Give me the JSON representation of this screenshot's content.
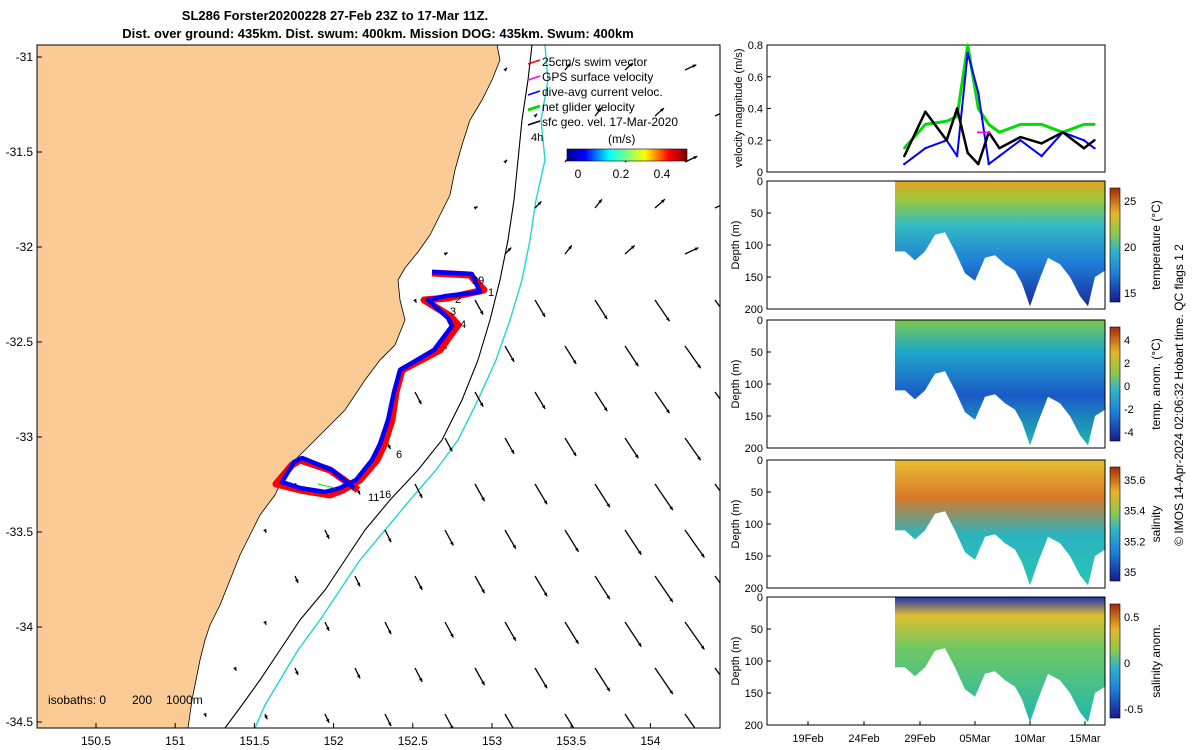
{
  "title": {
    "line1": "SL286 Forster20200228 27-Feb 23Z to 17-Mar 11Z.",
    "line2": "Dist. over ground: 435km. Dist. swum: 400km. Mission DOG: 435km. Swum: 400km"
  },
  "map": {
    "lat_ticks": [
      "-31",
      "-31.5",
      "-32",
      "-32.5",
      "-33",
      "-33.5",
      "-34",
      "-34.5"
    ],
    "lon_ticks": [
      "150.5",
      "151",
      "151.5",
      "152",
      "152.5",
      "153",
      "153.5",
      "154"
    ],
    "isobaths_label": "isobaths: 0",
    "isobath_200": "200",
    "isobath_1000": "1000m",
    "legend": [
      {
        "label": "25cm/s swim vector",
        "color": "#ff0000"
      },
      {
        "label": "GPS surface velocity",
        "color": "#ff00ff"
      },
      {
        "label": "dive-avg current veloc.",
        "color": "#0000ff"
      },
      {
        "label": "net glider velocity",
        "color": "#00dd00"
      },
      {
        "label": "sfc geo. vel. 17-Mar-2020",
        "color": "#000000"
      }
    ],
    "colorbar_label": "(m/s)",
    "colorbar_ticks": [
      "0",
      "0.2",
      "0.4"
    ],
    "track_labels": [
      "29",
      "1",
      "2",
      "3",
      "4",
      "6",
      "11",
      "16",
      "4h"
    ],
    "colors": {
      "land": "#fbcb96",
      "isobath_200": "#000000",
      "isobath_1000": "#22d4d4",
      "track_red": "#ff0000",
      "track_blue": "#0000ff"
    }
  },
  "velocity_panel": {
    "ylabel": "velocity magnitude (m/s)",
    "yticks": [
      "0",
      "0.2",
      "0.4",
      "0.6",
      "0.8"
    ]
  },
  "section_panels": [
    {
      "name": "temperature",
      "cbar_label": "temperature (°C)",
      "cbar_ticks": [
        "25",
        "20",
        "15"
      ]
    },
    {
      "name": "temp-anom",
      "cbar_label": "temp. anom. (°C)",
      "cbar_ticks": [
        "4",
        "2",
        "0",
        "-2",
        "-4"
      ]
    },
    {
      "name": "salinity",
      "cbar_label": "salinity",
      "cbar_ticks": [
        "35.6",
        "35.4",
        "35.2",
        "35"
      ]
    },
    {
      "name": "salinity-anom",
      "cbar_label": "salinity anom.",
      "cbar_ticks": [
        "0.5",
        "0",
        "-0.5"
      ]
    }
  ],
  "depth_label": "Depth (m)",
  "depth_ticks": [
    "0",
    "50",
    "100",
    "150",
    "200"
  ],
  "date_ticks": [
    "19Feb",
    "24Feb",
    "29Feb",
    "05Mar",
    "10Mar",
    "15Mar"
  ],
  "credit": "© IMOS 14-Apr-2024 02:06:32 Hobart time. QC flags 1  2",
  "chart_data": {
    "type": "line",
    "title": "SL286 Forster20200228 27-Feb 23Z to 17-Mar 11Z.",
    "xlabel": "",
    "ylabel": "velocity magnitude (m/s)",
    "ylim": [
      0,
      0.8
    ],
    "x_range": [
      "2020-02-15",
      "2020-03-18"
    ],
    "x": [
      "2020-02-28",
      "2020-03-01",
      "2020-03-03",
      "2020-03-04",
      "2020-03-05",
      "2020-03-06",
      "2020-03-07",
      "2020-03-08",
      "2020-03-10",
      "2020-03-12",
      "2020-03-14",
      "2020-03-16",
      "2020-03-17"
    ],
    "series": [
      {
        "name": "net glider velocity",
        "color": "#00dd00",
        "values": [
          0.15,
          0.3,
          0.32,
          0.35,
          0.8,
          0.4,
          0.3,
          0.25,
          0.3,
          0.3,
          0.25,
          0.3,
          0.3
        ]
      },
      {
        "name": "dive-avg current veloc.",
        "color": "#0000ff",
        "values": [
          0.05,
          0.15,
          0.2,
          0.1,
          0.75,
          0.5,
          0.05,
          0.1,
          0.2,
          0.1,
          0.25,
          0.2,
          0.15
        ]
      },
      {
        "name": "sfc geo. vel. 17-Mar-2020",
        "color": "#000000",
        "values": [
          0.1,
          0.38,
          0.2,
          0.4,
          0.12,
          0.05,
          0.25,
          0.15,
          0.22,
          0.18,
          0.25,
          0.15,
          0.2
        ]
      },
      {
        "name": "GPS surface velocity",
        "color": "#ff00ff",
        "values": [
          null,
          null,
          null,
          null,
          null,
          0.25,
          0.25,
          null,
          null,
          null,
          null,
          null,
          null
        ]
      }
    ],
    "grid": false
  }
}
